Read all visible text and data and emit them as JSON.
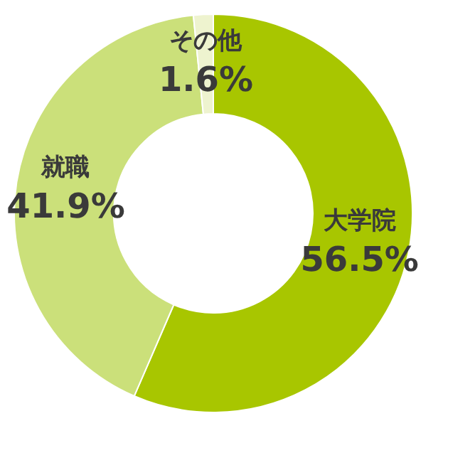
{
  "chart_data": {
    "type": "donut",
    "categories": [
      "大学院",
      "就職",
      "その他"
    ],
    "values": [
      56.5,
      41.9,
      1.6
    ],
    "value_labels": [
      "56.5%",
      "41.9%",
      "1.6%"
    ],
    "colors": [
      "#a8c600",
      "#cbe07a",
      "#eef3cf"
    ],
    "legend": false
  }
}
